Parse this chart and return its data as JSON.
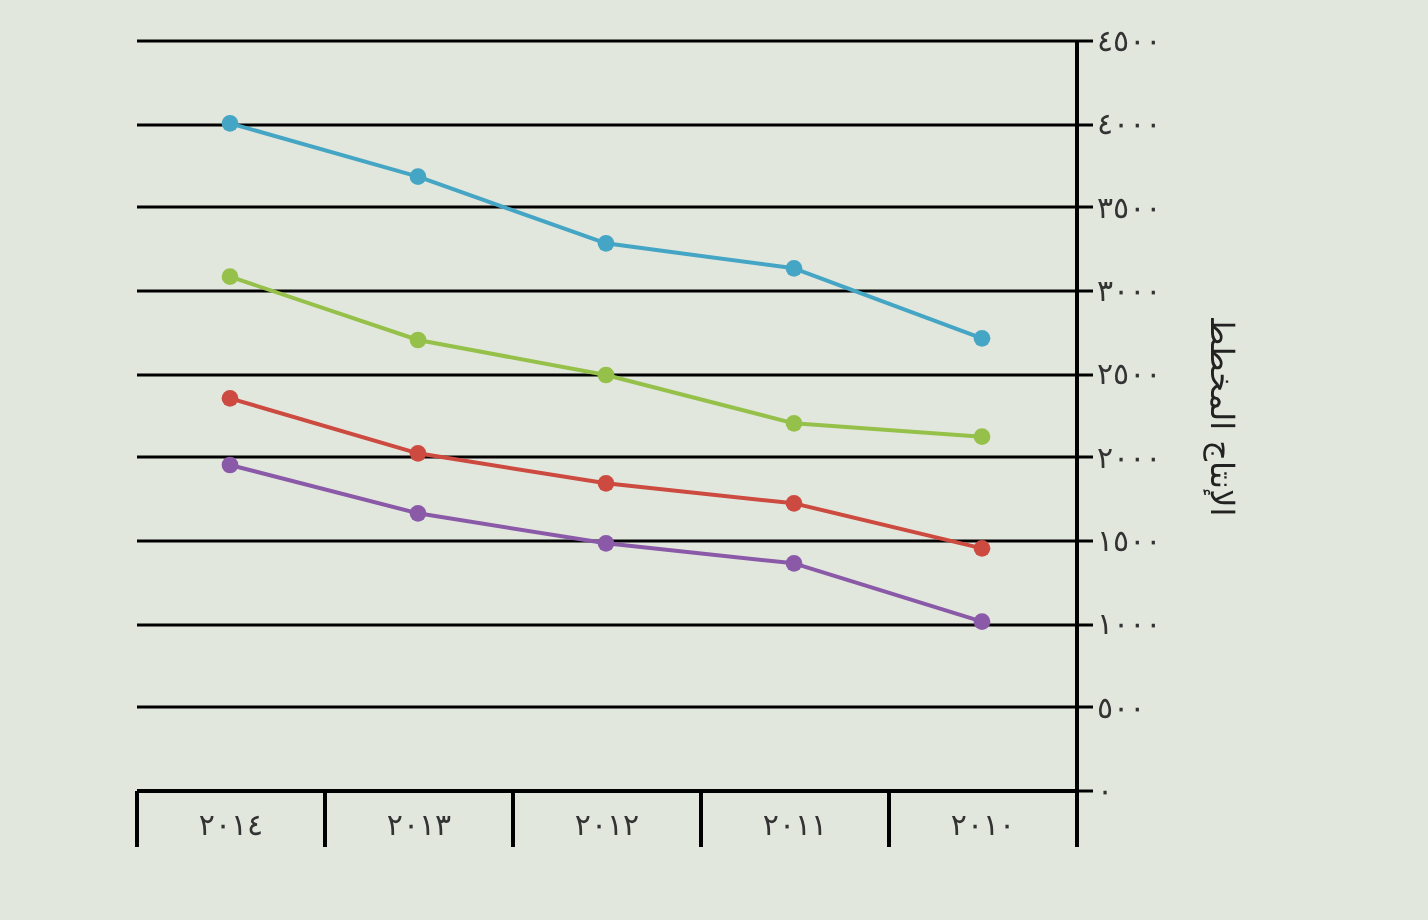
{
  "chart_data": {
    "type": "line",
    "ylabel": "الإنتاج المخطط",
    "categories": [
      "٢٠١٤",
      "٢٠١٣",
      "٢٠١٢",
      "٢٠١١",
      "٢٠١٠"
    ],
    "series": [
      {
        "color": "#45a5c4",
        "values": [
          4000,
          3680,
          3280,
          3130,
          2710
        ]
      },
      {
        "color": "#95c14a",
        "values": [
          3080,
          2700,
          2490,
          2200,
          2120
        ]
      },
      {
        "color": "#cc4a3f",
        "values": [
          2350,
          2020,
          1840,
          1720,
          1450
        ]
      },
      {
        "color": "#8a5aa8",
        "values": [
          1950,
          1660,
          1480,
          1360,
          1010
        ]
      }
    ],
    "ylim": [
      0,
      4500
    ],
    "yticks": [
      {
        "value": 0,
        "label": "٠"
      },
      {
        "value": 500,
        "label": "٥٠٠"
      },
      {
        "value": 1000,
        "label": "١٠٠٠"
      },
      {
        "value": 1500,
        "label": "١٥٠٠"
      },
      {
        "value": 2000,
        "label": "٢٠٠٠"
      },
      {
        "value": 2500,
        "label": "٢٥٠٠"
      },
      {
        "value": 3000,
        "label": "٣٠٠٠"
      },
      {
        "value": 3500,
        "label": "٣٥٠٠"
      },
      {
        "value": 4000,
        "label": "٤٠٠٠"
      },
      {
        "value": 4500,
        "label": "٤٥٠٠"
      }
    ],
    "grid": "y",
    "marker": "circle",
    "line_style": "solid"
  }
}
